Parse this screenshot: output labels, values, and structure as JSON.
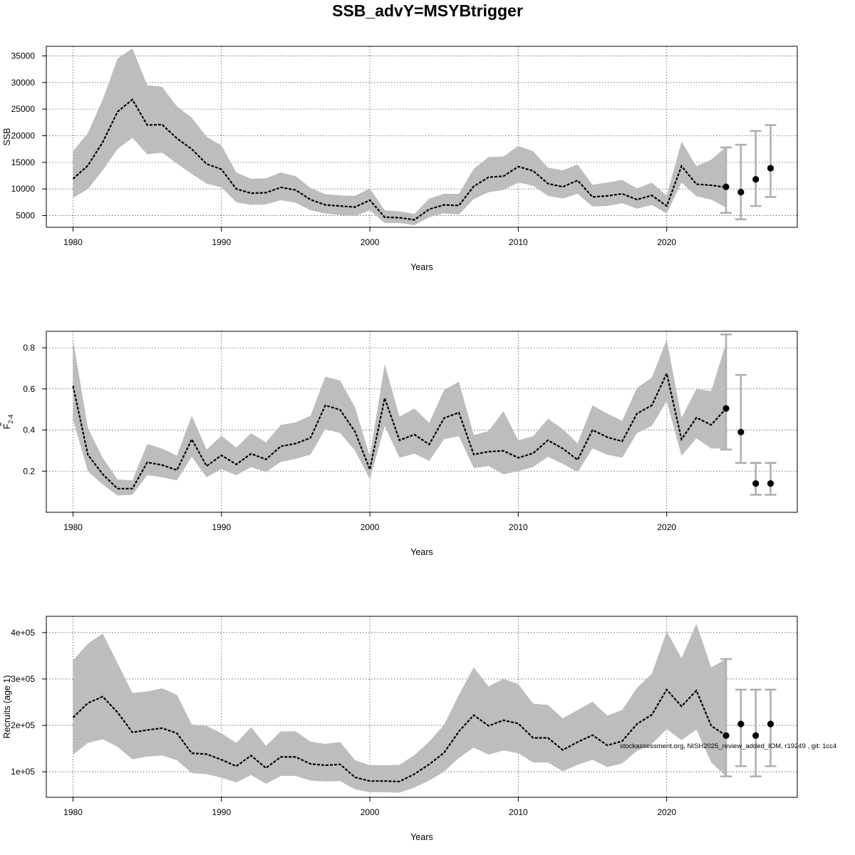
{
  "title": "SSB_advY=MSYBtrigger",
  "chart_data": [
    {
      "type": "line",
      "ylabel": "SSB",
      "xlabel": "Years",
      "grid": true,
      "x_ticks": [
        1980,
        1990,
        2000,
        2010,
        2020
      ],
      "y_ticks": [
        5000,
        10000,
        15000,
        20000,
        25000,
        30000,
        35000
      ],
      "y_tick_labels": [
        "5000",
        "10000",
        "15000",
        "20000",
        "25000",
        "30000",
        "35000"
      ],
      "xlim": [
        1978.2,
        2028.8
      ],
      "ylim": [
        2800,
        36800
      ],
      "series_years": [
        1980,
        1981,
        1982,
        1983,
        1984,
        1985,
        1986,
        1987,
        1988,
        1989,
        1990,
        1991,
        1992,
        1993,
        1994,
        1995,
        1996,
        1997,
        1998,
        1999,
        2000,
        2001,
        2002,
        2003,
        2004,
        2005,
        2006,
        2007,
        2008,
        2009,
        2010,
        2011,
        2012,
        2013,
        2014,
        2015,
        2016,
        2017,
        2018,
        2019,
        2020,
        2021,
        2022,
        2023,
        2024
      ],
      "estimate": [
        11900,
        14400,
        18800,
        24500,
        26800,
        22000,
        22100,
        19500,
        17500,
        14700,
        13700,
        10000,
        9200,
        9300,
        10300,
        9800,
        8000,
        7000,
        6800,
        6600,
        7900,
        4700,
        4600,
        4200,
        6200,
        7000,
        6900,
        10500,
        12200,
        12400,
        14200,
        13400,
        11000,
        10400,
        11600,
        8500,
        8700,
        9100,
        8000,
        8800,
        6800,
        14300,
        10900,
        10700,
        10300
      ],
      "lower": [
        8300,
        10000,
        13500,
        17500,
        19600,
        16500,
        16800,
        14800,
        12800,
        11000,
        10300,
        7500,
        7000,
        7100,
        7900,
        7400,
        6000,
        5400,
        5100,
        4900,
        6000,
        3600,
        3600,
        3200,
        4700,
        5400,
        5200,
        8100,
        9400,
        9800,
        11200,
        10600,
        8700,
        8200,
        9100,
        6700,
        6800,
        7300,
        6300,
        7000,
        5400,
        11200,
        8600,
        8000,
        6500
      ],
      "upper": [
        17100,
        20500,
        26800,
        34500,
        36400,
        29500,
        29200,
        25500,
        23400,
        19800,
        18200,
        13100,
        11900,
        12000,
        13100,
        12400,
        10200,
        9000,
        8800,
        8700,
        10100,
        6000,
        5800,
        5300,
        8200,
        9100,
        9100,
        13800,
        16000,
        16100,
        18100,
        17100,
        14000,
        13500,
        14600,
        10800,
        11200,
        11700,
        10100,
        11200,
        8700,
        18900,
        14300,
        15500,
        17900
      ],
      "forecast": {
        "years": [
          2024,
          2025,
          2026,
          2027
        ],
        "values": [
          10400,
          9400,
          11800,
          13900
        ],
        "lower": [
          5500,
          4300,
          6800,
          8500
        ],
        "upper": [
          17800,
          18300,
          20900,
          22000
        ]
      }
    },
    {
      "type": "line",
      "ylabel": "F",
      "ylabel_bar": true,
      "ylabel_sub": "2-4",
      "xlabel": "Years",
      "grid": true,
      "x_ticks": [
        1980,
        1990,
        2000,
        2010,
        2020
      ],
      "y_ticks": [
        0.2,
        0.4,
        0.6,
        0.8
      ],
      "y_tick_labels": [
        "0.2",
        "0.4",
        "0.6",
        "0.8"
      ],
      "xlim": [
        1978.2,
        2028.8
      ],
      "ylim": [
        0.0,
        0.88
      ],
      "series_years": [
        1980,
        1981,
        1982,
        1983,
        1984,
        1985,
        1986,
        1987,
        1988,
        1989,
        1990,
        1991,
        1992,
        1993,
        1994,
        1995,
        1996,
        1997,
        1998,
        1999,
        2000,
        2001,
        2002,
        2003,
        2004,
        2005,
        2006,
        2007,
        2008,
        2009,
        2010,
        2011,
        2012,
        2013,
        2014,
        2015,
        2016,
        2017,
        2018,
        2019,
        2020,
        2021,
        2022,
        2023,
        2024
      ],
      "estimate": [
        0.615,
        0.28,
        0.185,
        0.115,
        0.115,
        0.243,
        0.23,
        0.205,
        0.355,
        0.225,
        0.277,
        0.233,
        0.285,
        0.257,
        0.321,
        0.334,
        0.362,
        0.52,
        0.498,
        0.392,
        0.208,
        0.555,
        0.35,
        0.378,
        0.33,
        0.458,
        0.485,
        0.281,
        0.295,
        0.299,
        0.265,
        0.287,
        0.35,
        0.31,
        0.255,
        0.4,
        0.365,
        0.345,
        0.48,
        0.52,
        0.675,
        0.355,
        0.46,
        0.425,
        0.505
      ],
      "lower": [
        0.45,
        0.2,
        0.135,
        0.082,
        0.085,
        0.18,
        0.17,
        0.155,
        0.27,
        0.17,
        0.21,
        0.18,
        0.22,
        0.195,
        0.245,
        0.26,
        0.28,
        0.405,
        0.385,
        0.3,
        0.16,
        0.42,
        0.265,
        0.285,
        0.25,
        0.355,
        0.37,
        0.215,
        0.225,
        0.185,
        0.2,
        0.22,
        0.27,
        0.235,
        0.195,
        0.31,
        0.28,
        0.265,
        0.385,
        0.42,
        0.54,
        0.275,
        0.36,
        0.31,
        0.31
      ],
      "upper": [
        0.84,
        0.41,
        0.265,
        0.16,
        0.155,
        0.332,
        0.31,
        0.275,
        0.47,
        0.305,
        0.372,
        0.315,
        0.385,
        0.34,
        0.425,
        0.437,
        0.47,
        0.66,
        0.64,
        0.51,
        0.272,
        0.72,
        0.465,
        0.505,
        0.435,
        0.595,
        0.635,
        0.375,
        0.395,
        0.492,
        0.35,
        0.37,
        0.455,
        0.405,
        0.335,
        0.52,
        0.48,
        0.445,
        0.605,
        0.655,
        0.84,
        0.46,
        0.6,
        0.59,
        0.825
      ],
      "forecast": {
        "years": [
          2024,
          2025,
          2026,
          2027
        ],
        "values": [
          0.505,
          0.39,
          0.14,
          0.14
        ],
        "lower": [
          0.305,
          0.24,
          0.085,
          0.085
        ],
        "upper": [
          0.865,
          0.668,
          0.24,
          0.24
        ]
      }
    },
    {
      "type": "line",
      "ylabel": "Recruits (age 1)",
      "xlabel": "Years",
      "grid": true,
      "x_ticks": [
        1980,
        1990,
        2000,
        2010,
        2020
      ],
      "y_ticks": [
        100000,
        200000,
        300000,
        400000
      ],
      "y_tick_labels": [
        "1e+05",
        "2e+05",
        "3e+05",
        "4e+05"
      ],
      "xlim": [
        1978.2,
        2028.8
      ],
      "ylim": [
        45000,
        435000
      ],
      "series_years": [
        1980,
        1981,
        1982,
        1983,
        1984,
        1985,
        1986,
        1987,
        1988,
        1989,
        1990,
        1991,
        1992,
        1993,
        1994,
        1995,
        1996,
        1997,
        1998,
        1999,
        2000,
        2001,
        2002,
        2003,
        2004,
        2005,
        2006,
        2007,
        2008,
        2009,
        2010,
        2011,
        2012,
        2013,
        2014,
        2015,
        2016,
        2017,
        2018,
        2019,
        2020,
        2021,
        2022,
        2023,
        2024
      ],
      "estimate": [
        217000,
        248000,
        262000,
        228000,
        185000,
        190000,
        194000,
        183000,
        140000,
        138000,
        126000,
        112000,
        135000,
        108000,
        132000,
        132000,
        117000,
        114000,
        116000,
        88000,
        80000,
        80000,
        79000,
        95000,
        116000,
        141000,
        187000,
        222000,
        199000,
        211000,
        204000,
        173000,
        173000,
        147000,
        164000,
        179000,
        157000,
        166000,
        203000,
        223000,
        277000,
        241000,
        275000,
        199000,
        178000
      ],
      "lower": [
        137000,
        162000,
        170000,
        154000,
        127000,
        133000,
        135000,
        125000,
        97000,
        95000,
        87000,
        77000,
        93000,
        74000,
        91000,
        91000,
        81000,
        79000,
        80000,
        62000,
        56000,
        56000,
        55000,
        66000,
        81000,
        100000,
        130000,
        152000,
        137000,
        146000,
        140000,
        120000,
        120000,
        101000,
        115000,
        126000,
        110000,
        118000,
        145000,
        160000,
        192000,
        168000,
        191000,
        120000,
        90000
      ],
      "upper": [
        340000,
        376000,
        398000,
        334000,
        270000,
        273000,
        280000,
        266000,
        202000,
        199000,
        183000,
        162000,
        196000,
        156000,
        187000,
        187000,
        165000,
        160000,
        164000,
        125000,
        114000,
        114000,
        115000,
        136000,
        165000,
        201000,
        266000,
        325000,
        284000,
        300000,
        289000,
        247000,
        244000,
        215000,
        233000,
        251000,
        221000,
        233000,
        281000,
        311000,
        402000,
        345000,
        419000,
        325000,
        343000
      ],
      "forecast": {
        "years": [
          2024,
          2025,
          2026,
          2027
        ],
        "values": [
          178000,
          203000,
          178000,
          203000
        ],
        "lower": [
          90000,
          112000,
          90000,
          112000
        ],
        "upper": [
          343000,
          277000,
          277000,
          277000
        ]
      }
    }
  ],
  "footnote": "stockassessment.org, NISH2025_review_added_IOM, r19249 , git: 1cc4"
}
